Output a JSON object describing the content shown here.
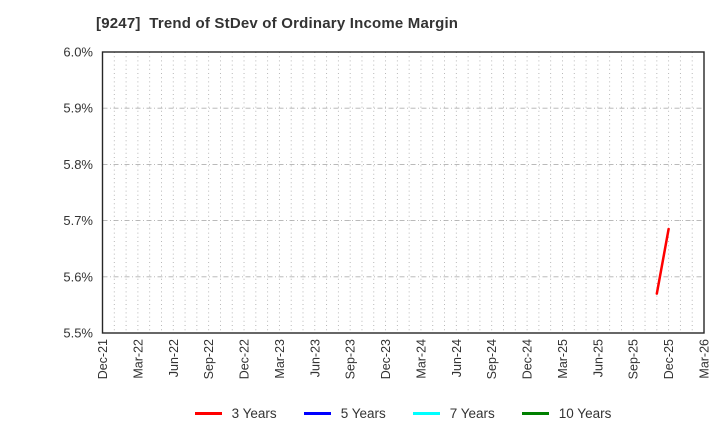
{
  "chart_data": {
    "type": "line",
    "title": "[9247]  Trend of StDev of Ordinary Income Margin",
    "title_color": "#333333",
    "xlabel": "",
    "ylabel": "",
    "ylim": [
      5.5,
      6.0
    ],
    "y_ticks": [
      {
        "label": "6.0%",
        "value": 6.0
      },
      {
        "label": "5.9%",
        "value": 5.9
      },
      {
        "label": "5.8%",
        "value": 5.8
      },
      {
        "label": "5.7%",
        "value": 5.7
      },
      {
        "label": "5.6%",
        "value": 5.6
      },
      {
        "label": "5.5%",
        "value": 5.5
      }
    ],
    "x_axis_months_total": 51,
    "x_ticks": [
      {
        "label": "Dec-21",
        "month_index": 0
      },
      {
        "label": "Mar-22",
        "month_index": 3
      },
      {
        "label": "Jun-22",
        "month_index": 6
      },
      {
        "label": "Sep-22",
        "month_index": 9
      },
      {
        "label": "Dec-22",
        "month_index": 12
      },
      {
        "label": "Mar-23",
        "month_index": 15
      },
      {
        "label": "Jun-23",
        "month_index": 18
      },
      {
        "label": "Sep-23",
        "month_index": 21
      },
      {
        "label": "Dec-23",
        "month_index": 24
      },
      {
        "label": "Mar-24",
        "month_index": 27
      },
      {
        "label": "Jun-24",
        "month_index": 30
      },
      {
        "label": "Sep-24",
        "month_index": 33
      },
      {
        "label": "Dec-24",
        "month_index": 36
      },
      {
        "label": "Mar-25",
        "month_index": 39
      },
      {
        "label": "Jun-25",
        "month_index": 42
      },
      {
        "label": "Sep-25",
        "month_index": 45
      },
      {
        "label": "Dec-25",
        "month_index": 48
      },
      {
        "label": "Mar-26",
        "month_index": 51
      }
    ],
    "grid": {
      "horizontal_style": "dash-dot",
      "vertical_style": "dotted-monthly",
      "color": "#b0b0b0"
    },
    "axis_border_color": "#262626",
    "tick_label_color": "#333333",
    "legend_position": "bottom-center",
    "series": [
      {
        "name": "3 Years",
        "color": "#ff0000",
        "points": [
          {
            "month": "Nov-25",
            "month_index": 47,
            "value": 5.57
          },
          {
            "month": "Dec-25",
            "month_index": 48,
            "value": 5.685
          }
        ]
      },
      {
        "name": "5 Years",
        "color": "#0000ff",
        "points": []
      },
      {
        "name": "7 Years",
        "color": "#00ffff",
        "points": []
      },
      {
        "name": "10 Years",
        "color": "#008000",
        "points": []
      }
    ]
  }
}
